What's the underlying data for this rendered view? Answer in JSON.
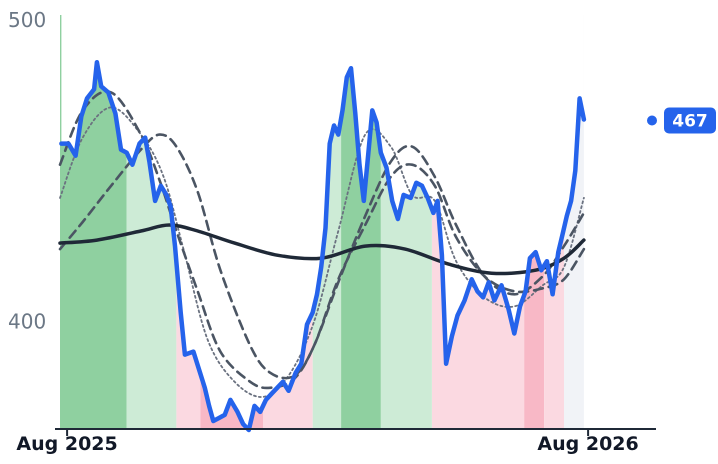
{
  "chart_data": {
    "type": "line",
    "title": "",
    "xlabel": "",
    "ylabel": "",
    "xlim": [
      "2025-07-20",
      "2026-09-10"
    ],
    "ylim": [
      365,
      500
    ],
    "yticks": [
      400,
      500
    ],
    "xticks": [
      {
        "date": "2025-07-25",
        "label": "Aug 2025"
      },
      {
        "date": "2026-07-27",
        "label": "Aug 2026"
      }
    ],
    "last_value_label": "467",
    "colors": {
      "price": "#2563eb",
      "trend": "#1f2937",
      "envelope": "#4b5563",
      "fast": "#6b7280",
      "up_strong": "#8fd0a0",
      "up_weak": "#cdebd6",
      "down_strong": "#f8b8c6",
      "down_weak": "#fbd9e1",
      "neutral": "#f1f3f7",
      "badge": "#2563eb",
      "axis": "#1f2937"
    },
    "regimes": [
      {
        "start": "2025-07-20",
        "end": "2025-09-05",
        "kind": "up_strong"
      },
      {
        "start": "2025-09-05",
        "end": "2025-10-10",
        "kind": "up_weak"
      },
      {
        "start": "2025-10-10",
        "end": "2025-10-27",
        "kind": "down_weak"
      },
      {
        "start": "2025-10-27",
        "end": "2025-12-10",
        "kind": "down_strong"
      },
      {
        "start": "2025-12-10",
        "end": "2026-01-14",
        "kind": "down_weak"
      },
      {
        "start": "2026-01-14",
        "end": "2026-02-03",
        "kind": "up_weak"
      },
      {
        "start": "2026-02-03",
        "end": "2026-03-03",
        "kind": "up_strong"
      },
      {
        "start": "2026-03-03",
        "end": "2026-04-08",
        "kind": "up_weak"
      },
      {
        "start": "2026-04-08",
        "end": "2026-06-12",
        "kind": "down_weak"
      },
      {
        "start": "2026-06-12",
        "end": "2026-06-26",
        "kind": "down_strong"
      },
      {
        "start": "2026-06-26",
        "end": "2026-07-10",
        "kind": "down_weak"
      },
      {
        "start": "2026-07-10",
        "end": "2026-07-24",
        "kind": "neutral"
      }
    ],
    "series": [
      {
        "role": "price",
        "points": [
          [
            "2025-07-21",
            459
          ],
          [
            "2025-07-26",
            459
          ],
          [
            "2025-07-31",
            455
          ],
          [
            "2025-08-04",
            468
          ],
          [
            "2025-08-08",
            474
          ],
          [
            "2025-08-13",
            477
          ],
          [
            "2025-08-15",
            486
          ],
          [
            "2025-08-18",
            478
          ],
          [
            "2025-08-23",
            476
          ],
          [
            "2025-08-28",
            469
          ],
          [
            "2025-09-01",
            457
          ],
          [
            "2025-09-05",
            456
          ],
          [
            "2025-09-09",
            452
          ],
          [
            "2025-09-14",
            459
          ],
          [
            "2025-09-18",
            461
          ],
          [
            "2025-09-21",
            453
          ],
          [
            "2025-09-25",
            440
          ],
          [
            "2025-09-29",
            445
          ],
          [
            "2025-10-03",
            442
          ],
          [
            "2025-10-06",
            438
          ],
          [
            "2025-10-09",
            425
          ],
          [
            "2025-10-13",
            403
          ],
          [
            "2025-10-16",
            389
          ],
          [
            "2025-10-22",
            390
          ],
          [
            "2025-10-26",
            384
          ],
          [
            "2025-10-30",
            378
          ],
          [
            "2025-11-02",
            372
          ],
          [
            "2025-11-05",
            367
          ],
          [
            "2025-11-09",
            368
          ],
          [
            "2025-11-13",
            369
          ],
          [
            "2025-11-17",
            374
          ],
          [
            "2025-11-22",
            370
          ],
          [
            "2025-11-26",
            366
          ],
          [
            "2025-11-30",
            364
          ],
          [
            "2025-12-04",
            372
          ],
          [
            "2025-12-08",
            370
          ],
          [
            "2025-12-12",
            374
          ],
          [
            "2025-12-16",
            376
          ],
          [
            "2025-12-20",
            378
          ],
          [
            "2025-12-24",
            380
          ],
          [
            "2025-12-28",
            377
          ],
          [
            "2026-01-02",
            383
          ],
          [
            "2026-01-06",
            386
          ],
          [
            "2026-01-10",
            399
          ],
          [
            "2026-01-14",
            403
          ],
          [
            "2026-01-17",
            409
          ],
          [
            "2026-01-20",
            418
          ],
          [
            "2026-01-23",
            431
          ],
          [
            "2026-01-26",
            459
          ],
          [
            "2026-01-29",
            465
          ],
          [
            "2026-02-01",
            462
          ],
          [
            "2026-02-04",
            470
          ],
          [
            "2026-02-07",
            481
          ],
          [
            "2026-02-10",
            484
          ],
          [
            "2026-02-13",
            469
          ],
          [
            "2026-02-16",
            452
          ],
          [
            "2026-02-19",
            440
          ],
          [
            "2026-02-22",
            455
          ],
          [
            "2026-02-25",
            470
          ],
          [
            "2026-02-28",
            466
          ],
          [
            "2026-03-03",
            456
          ],
          [
            "2026-03-07",
            451
          ],
          [
            "2026-03-11",
            440
          ],
          [
            "2026-03-15",
            434
          ],
          [
            "2026-03-19",
            442
          ],
          [
            "2026-03-24",
            441
          ],
          [
            "2026-03-28",
            446
          ],
          [
            "2026-04-01",
            445
          ],
          [
            "2026-04-05",
            441
          ],
          [
            "2026-04-09",
            436
          ],
          [
            "2026-04-12",
            440
          ],
          [
            "2026-04-15",
            422
          ],
          [
            "2026-04-18",
            386
          ],
          [
            "2026-04-22",
            395
          ],
          [
            "2026-04-26",
            402
          ],
          [
            "2026-05-01",
            407
          ],
          [
            "2026-05-06",
            414
          ],
          [
            "2026-05-10",
            410
          ],
          [
            "2026-05-14",
            408
          ],
          [
            "2026-05-18",
            413
          ],
          [
            "2026-05-22",
            407
          ],
          [
            "2026-05-27",
            412
          ],
          [
            "2026-06-01",
            404
          ],
          [
            "2026-06-05",
            396
          ],
          [
            "2026-06-09",
            405
          ],
          [
            "2026-06-13",
            410
          ],
          [
            "2026-06-16",
            421
          ],
          [
            "2026-06-20",
            423
          ],
          [
            "2026-06-24",
            417
          ],
          [
            "2026-06-28",
            420
          ],
          [
            "2026-07-02",
            409
          ],
          [
            "2026-07-06",
            423
          ],
          [
            "2026-07-09",
            429
          ],
          [
            "2026-07-12",
            435
          ],
          [
            "2026-07-15",
            440
          ],
          [
            "2026-07-18",
            450
          ],
          [
            "2026-07-21",
            474
          ],
          [
            "2026-07-24",
            467
          ]
        ]
      },
      {
        "role": "trend",
        "points": [
          [
            "2025-07-20",
            426
          ],
          [
            "2025-08-15",
            427
          ],
          [
            "2025-09-15",
            430
          ],
          [
            "2025-10-05",
            432
          ],
          [
            "2025-10-25",
            430
          ],
          [
            "2025-11-20",
            426
          ],
          [
            "2025-12-20",
            422
          ],
          [
            "2026-01-20",
            421
          ],
          [
            "2026-02-20",
            425
          ],
          [
            "2026-03-20",
            424
          ],
          [
            "2026-04-20",
            419
          ],
          [
            "2026-05-20",
            416
          ],
          [
            "2026-06-20",
            417
          ],
          [
            "2026-07-10",
            421
          ],
          [
            "2026-07-24",
            427
          ]
        ]
      },
      {
        "role": "envelope",
        "points": [
          [
            "2025-07-20",
            424
          ],
          [
            "2025-08-05",
            433
          ],
          [
            "2025-08-25",
            445
          ],
          [
            "2025-09-15",
            457
          ],
          [
            "2025-09-28",
            462
          ],
          [
            "2025-10-10",
            458
          ],
          [
            "2025-10-25",
            443
          ],
          [
            "2025-11-10",
            417
          ],
          [
            "2025-12-01",
            392
          ],
          [
            "2025-12-15",
            383
          ],
          [
            "2026-01-01",
            382
          ],
          [
            "2026-01-15",
            392
          ],
          [
            "2026-02-01",
            414
          ],
          [
            "2026-02-20",
            432
          ],
          [
            "2026-03-10",
            448
          ],
          [
            "2026-03-25",
            452
          ],
          [
            "2026-04-10",
            445
          ],
          [
            "2026-04-25",
            428
          ],
          [
            "2026-05-15",
            415
          ],
          [
            "2026-06-05",
            410
          ],
          [
            "2026-06-25",
            411
          ],
          [
            "2026-07-10",
            414
          ],
          [
            "2026-07-24",
            424
          ]
        ]
      },
      {
        "role": "envelope",
        "points": [
          [
            "2025-07-20",
            452
          ],
          [
            "2025-08-05",
            470
          ],
          [
            "2025-08-25",
            476
          ],
          [
            "2025-09-15",
            462
          ],
          [
            "2025-09-28",
            447
          ],
          [
            "2025-10-10",
            430
          ],
          [
            "2025-10-25",
            410
          ],
          [
            "2025-11-10",
            390
          ],
          [
            "2025-12-01",
            380
          ],
          [
            "2025-12-15",
            378
          ],
          [
            "2026-01-01",
            381
          ],
          [
            "2026-01-15",
            392
          ],
          [
            "2026-02-01",
            413
          ],
          [
            "2026-02-20",
            435
          ],
          [
            "2026-03-10",
            453
          ],
          [
            "2026-03-25",
            458
          ],
          [
            "2026-04-10",
            448
          ],
          [
            "2026-04-25",
            432
          ],
          [
            "2026-05-15",
            415
          ],
          [
            "2026-06-05",
            409
          ],
          [
            "2026-06-25",
            415
          ],
          [
            "2026-07-10",
            425
          ],
          [
            "2026-07-24",
            436
          ]
        ]
      },
      {
        "role": "fast",
        "points": [
          [
            "2025-07-20",
            441
          ],
          [
            "2025-08-05",
            461
          ],
          [
            "2025-08-25",
            471
          ],
          [
            "2025-09-15",
            462
          ],
          [
            "2025-10-01",
            448
          ],
          [
            "2025-10-15",
            424
          ],
          [
            "2025-11-01",
            394
          ],
          [
            "2025-11-20",
            380
          ],
          [
            "2025-12-10",
            375
          ],
          [
            "2025-12-28",
            382
          ],
          [
            "2026-01-15",
            400
          ],
          [
            "2026-02-01",
            430
          ],
          [
            "2026-02-20",
            462
          ],
          [
            "2026-03-10",
            458
          ],
          [
            "2026-03-25",
            442
          ],
          [
            "2026-04-10",
            440
          ],
          [
            "2026-04-25",
            420
          ],
          [
            "2026-05-15",
            408
          ],
          [
            "2026-06-05",
            405
          ],
          [
            "2026-06-25",
            412
          ],
          [
            "2026-07-10",
            418
          ],
          [
            "2026-07-24",
            441
          ]
        ]
      }
    ]
  }
}
